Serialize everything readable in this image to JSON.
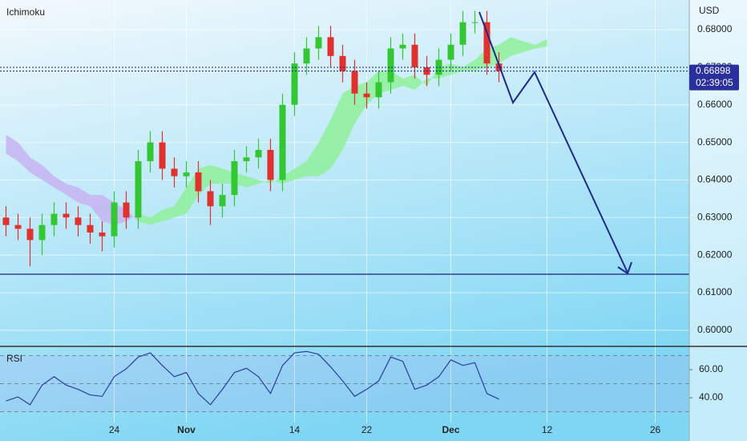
{
  "chart_data": {
    "type": "candlestick",
    "title": "Ichimoku",
    "currency": "USD",
    "categories": [
      null,
      null,
      null,
      null,
      null,
      null,
      null,
      null,
      null,
      "24",
      null,
      null,
      null,
      null,
      null,
      "Nov",
      null,
      null,
      null,
      null,
      null,
      null,
      null,
      null,
      "14",
      null,
      null,
      null,
      null,
      null,
      "22",
      null,
      null,
      null,
      null,
      null,
      null,
      "Dec",
      null,
      null,
      null,
      null,
      null,
      null,
      null,
      "12",
      null,
      null,
      null,
      null,
      null,
      null,
      null,
      null,
      "26",
      null,
      null
    ],
    "open": [
      0.63,
      0.628,
      0.627,
      0.624,
      0.628,
      0.631,
      0.63,
      0.628,
      0.626,
      0.625,
      0.634,
      0.63,
      0.645,
      0.65,
      0.643,
      0.641,
      0.642,
      0.637,
      0.633,
      0.636,
      0.645,
      0.646,
      0.648,
      0.64,
      0.66,
      0.671,
      0.675,
      0.678,
      0.673,
      0.669,
      0.663,
      0.662,
      0.666,
      0.675,
      0.676,
      0.67,
      0.668,
      0.672,
      0.676,
      0.682,
      0.682,
      0.671,
      null,
      null,
      null,
      null,
      null,
      null,
      null,
      null,
      null,
      null,
      null,
      null,
      null,
      null,
      null
    ],
    "high": [
      0.633,
      0.631,
      0.63,
      0.631,
      0.634,
      0.634,
      0.633,
      0.631,
      0.629,
      0.637,
      0.637,
      0.648,
      0.653,
      0.653,
      0.646,
      0.645,
      0.645,
      0.64,
      0.639,
      0.648,
      0.649,
      0.651,
      0.651,
      0.663,
      0.674,
      0.678,
      0.681,
      0.681,
      0.676,
      0.672,
      0.666,
      0.669,
      0.678,
      0.679,
      0.679,
      0.673,
      0.675,
      0.679,
      0.685,
      0.685,
      0.685,
      0.674,
      null,
      null,
      null,
      null,
      null,
      null,
      null,
      null,
      null,
      null,
      null,
      null,
      null,
      null,
      null
    ],
    "low": [
      0.625,
      0.624,
      0.617,
      0.62,
      0.625,
      0.627,
      0.625,
      0.623,
      0.621,
      0.622,
      0.627,
      0.627,
      0.642,
      0.64,
      0.638,
      0.638,
      0.634,
      0.628,
      0.63,
      0.633,
      0.642,
      0.643,
      0.637,
      0.637,
      0.657,
      0.668,
      0.672,
      0.67,
      0.666,
      0.66,
      0.659,
      0.659,
      0.663,
      0.672,
      0.667,
      0.665,
      0.665,
      0.669,
      0.673,
      0.679,
      0.668,
      0.666,
      null,
      null,
      null,
      null,
      null,
      null,
      null,
      null,
      null,
      null,
      null,
      null,
      null,
      null,
      null
    ],
    "close": [
      0.628,
      0.627,
      0.624,
      0.628,
      0.631,
      0.63,
      0.628,
      0.626,
      0.625,
      0.634,
      0.63,
      0.645,
      0.65,
      0.643,
      0.641,
      0.642,
      0.637,
      0.633,
      0.636,
      0.645,
      0.646,
      0.648,
      0.64,
      0.66,
      0.671,
      0.675,
      0.678,
      0.673,
      0.669,
      0.663,
      0.662,
      0.666,
      0.675,
      0.676,
      0.67,
      0.668,
      0.672,
      0.676,
      0.682,
      0.682,
      0.671,
      0.669,
      null,
      null,
      null,
      null,
      null,
      null,
      null,
      null,
      null,
      null,
      null,
      null,
      null,
      null,
      null
    ],
    "up_color": "#34c734",
    "down_color": "#e0312f",
    "cloud": {
      "span_a": [
        0.647,
        0.645,
        0.642,
        0.64,
        0.638,
        0.636,
        0.634,
        0.633,
        0.629,
        0.628,
        0.629,
        0.631,
        0.63,
        0.632,
        0.633,
        0.638,
        0.643,
        0.644,
        0.643,
        0.642,
        0.641,
        0.64,
        0.639,
        0.641,
        0.643,
        0.645,
        0.65,
        0.656,
        0.663,
        0.665,
        0.666,
        0.669,
        0.669,
        0.667,
        0.668,
        0.665,
        0.67,
        0.671,
        0.67,
        0.672,
        0.675,
        0.676,
        0.678,
        0.677,
        0.676,
        0.6775,
        null,
        null,
        null,
        null,
        null,
        null,
        null,
        null,
        null,
        null,
        null
      ],
      "span_b": [
        0.652,
        0.65,
        0.646,
        0.644,
        0.641,
        0.639,
        0.638,
        0.636,
        0.636,
        0.634,
        0.632,
        0.629,
        0.628,
        0.629,
        0.63,
        0.631,
        0.636,
        0.639,
        0.639,
        0.639,
        0.638,
        0.639,
        0.64,
        0.639,
        0.64,
        0.641,
        0.641,
        0.643,
        0.648,
        0.655,
        0.66,
        0.663,
        0.664,
        0.665,
        0.664,
        0.667,
        0.667,
        0.668,
        0.669,
        0.669,
        0.67,
        0.671,
        0.673,
        0.674,
        0.675,
        0.6755,
        null,
        null,
        null,
        null,
        null,
        null,
        null,
        null,
        null,
        null,
        null
      ],
      "bull_color": "#8ff09a",
      "bear_color": "#c7b3f2"
    },
    "ylim": [
      0.5957,
      0.6879
    ],
    "yticks": [
      {
        "value": 0.68,
        "label": "0.68000"
      },
      {
        "value": 0.67,
        "label": "0.67000"
      },
      {
        "value": 0.66,
        "label": "0.66000"
      },
      {
        "value": 0.65,
        "label": "0.65000"
      },
      {
        "value": 0.64,
        "label": "0.64000"
      },
      {
        "value": 0.63,
        "label": "0.63000"
      },
      {
        "value": 0.62,
        "label": "0.62000"
      },
      {
        "value": 0.61,
        "label": "0.61000"
      },
      {
        "value": 0.6,
        "label": "0.60000"
      }
    ],
    "last_price": {
      "value": 0.66898,
      "label": "0.66898"
    },
    "countdown": "02:39:05",
    "grid": true,
    "rsi": {
      "title": "RSI",
      "color": "#2c3d9e",
      "values": [
        37.7,
        40.6,
        35,
        49,
        55,
        49,
        46,
        42,
        41,
        55,
        60.6,
        69,
        72,
        63,
        55,
        58,
        43,
        35,
        46,
        58,
        61,
        55,
        43,
        63,
        72,
        73,
        71,
        62,
        52,
        41,
        46,
        52,
        69,
        66,
        46,
        49,
        55,
        67,
        63,
        65,
        43,
        39,
        null,
        null,
        null,
        null,
        null,
        null,
        null,
        null,
        null,
        null,
        null,
        null,
        null,
        null,
        null
      ],
      "ylim": [
        22.3,
        76.6
      ],
      "yticks": [
        {
          "value": 60,
          "label": "60.00"
        },
        {
          "value": 40,
          "label": "40.00"
        }
      ],
      "levels": [
        70,
        50,
        30
      ]
    }
  }
}
